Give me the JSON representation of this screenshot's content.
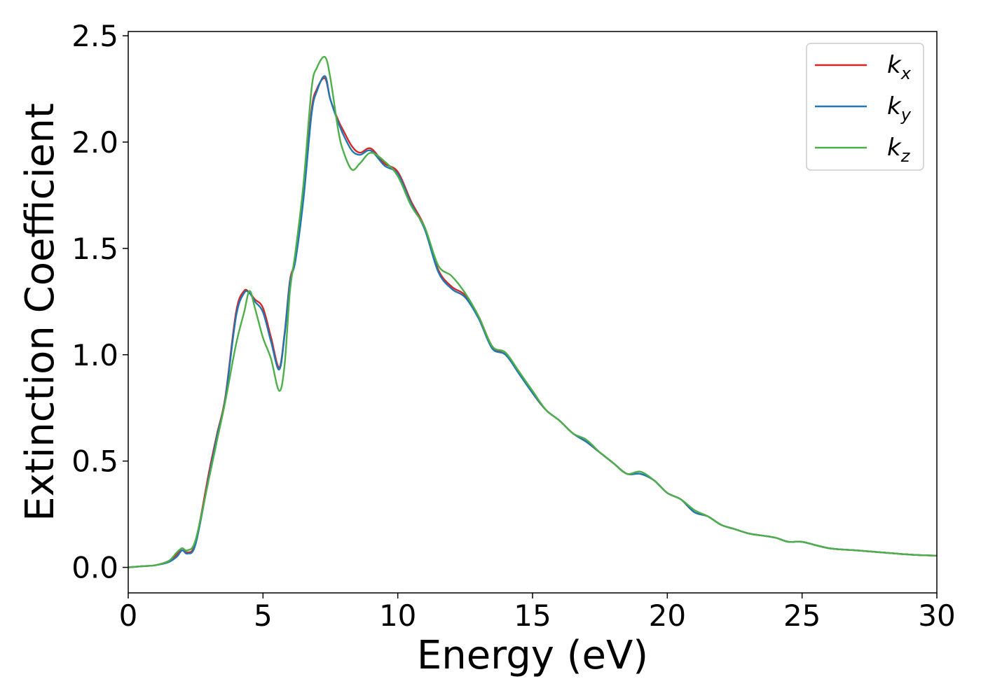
{
  "chart_data": {
    "type": "line",
    "xlabel": "Energy (eV)",
    "ylabel": "Extinction Coefficient",
    "xlim": [
      0,
      30
    ],
    "ylim": [
      -0.12,
      2.52
    ],
    "xticks": [
      "0",
      "5",
      "10",
      "15",
      "20",
      "25",
      "30"
    ],
    "yticks": [
      "0.0",
      "0.5",
      "1.0",
      "1.5",
      "2.0",
      "2.5"
    ],
    "grid": false,
    "legend_position": "top-right",
    "series": [
      {
        "name": "k",
        "subscript": "x",
        "color": "#d62728",
        "x": [
          0,
          0.5,
          1,
          1.5,
          1.8,
          2.0,
          2.2,
          2.5,
          3.0,
          3.3,
          3.6,
          4.0,
          4.3,
          4.5,
          4.7,
          5.0,
          5.3,
          5.6,
          5.8,
          6.0,
          6.2,
          6.5,
          6.8,
          7.0,
          7.3,
          7.5,
          7.8,
          8.0,
          8.3,
          8.6,
          9.0,
          9.5,
          10.0,
          10.5,
          11.0,
          11.5,
          12.0,
          12.5,
          13.0,
          13.5,
          14.0,
          14.5,
          15.0,
          15.5,
          16.0,
          16.5,
          17.0,
          17.5,
          18.0,
          18.5,
          19.0,
          19.5,
          20.0,
          20.5,
          21.0,
          21.5,
          22.0,
          22.5,
          23.0,
          23.5,
          24.0,
          24.5,
          25.0,
          26.0,
          27.0,
          28.0,
          29.0,
          30.0
        ],
        "values": [
          0.0,
          0.005,
          0.01,
          0.03,
          0.06,
          0.09,
          0.07,
          0.12,
          0.45,
          0.63,
          0.8,
          1.2,
          1.3,
          1.29,
          1.26,
          1.22,
          1.08,
          0.94,
          1.1,
          1.35,
          1.45,
          1.75,
          2.15,
          2.25,
          2.3,
          2.2,
          2.1,
          2.05,
          1.98,
          1.95,
          1.97,
          1.9,
          1.86,
          1.72,
          1.6,
          1.4,
          1.32,
          1.28,
          1.18,
          1.04,
          1.0,
          0.92,
          0.82,
          0.74,
          0.69,
          0.63,
          0.59,
          0.54,
          0.49,
          0.44,
          0.44,
          0.41,
          0.35,
          0.32,
          0.26,
          0.24,
          0.2,
          0.18,
          0.16,
          0.15,
          0.14,
          0.12,
          0.12,
          0.09,
          0.08,
          0.07,
          0.06,
          0.055
        ]
      },
      {
        "name": "k",
        "subscript": "y",
        "color": "#1f77b4",
        "x": [
          0,
          0.5,
          1,
          1.5,
          1.8,
          2.0,
          2.2,
          2.5,
          3.0,
          3.3,
          3.6,
          4.0,
          4.3,
          4.5,
          4.7,
          5.0,
          5.3,
          5.6,
          5.8,
          6.0,
          6.2,
          6.5,
          6.8,
          7.0,
          7.3,
          7.5,
          7.8,
          8.0,
          8.3,
          8.6,
          9.0,
          9.5,
          10.0,
          10.5,
          11.0,
          11.5,
          12.0,
          12.5,
          13.0,
          13.5,
          14.0,
          14.5,
          15.0,
          15.5,
          16.0,
          16.5,
          17.0,
          17.5,
          18.0,
          18.5,
          19.0,
          19.5,
          20.0,
          20.5,
          21.0,
          21.5,
          22.0,
          22.5,
          23.0,
          23.5,
          24.0,
          24.5,
          25.0,
          26.0,
          27.0,
          28.0,
          29.0,
          30.0
        ],
        "values": [
          0.0,
          0.005,
          0.01,
          0.025,
          0.05,
          0.08,
          0.065,
          0.11,
          0.43,
          0.62,
          0.79,
          1.18,
          1.29,
          1.29,
          1.25,
          1.2,
          1.06,
          0.93,
          1.09,
          1.34,
          1.44,
          1.73,
          2.13,
          2.24,
          2.31,
          2.2,
          2.09,
          2.03,
          1.96,
          1.94,
          1.96,
          1.89,
          1.85,
          1.71,
          1.59,
          1.39,
          1.31,
          1.27,
          1.17,
          1.03,
          1.0,
          0.91,
          0.82,
          0.74,
          0.69,
          0.63,
          0.59,
          0.54,
          0.49,
          0.44,
          0.44,
          0.41,
          0.35,
          0.32,
          0.26,
          0.24,
          0.2,
          0.18,
          0.16,
          0.15,
          0.14,
          0.12,
          0.12,
          0.09,
          0.08,
          0.07,
          0.06,
          0.055
        ]
      },
      {
        "name": "k",
        "subscript": "z",
        "color": "#4daf4a",
        "x": [
          0,
          0.5,
          1,
          1.5,
          1.8,
          2.0,
          2.2,
          2.5,
          3.0,
          3.3,
          3.6,
          4.0,
          4.3,
          4.5,
          4.7,
          5.0,
          5.3,
          5.6,
          5.8,
          6.0,
          6.2,
          6.5,
          6.8,
          7.0,
          7.3,
          7.5,
          7.8,
          8.0,
          8.3,
          8.6,
          9.0,
          9.5,
          10.0,
          10.5,
          11.0,
          11.5,
          12.0,
          12.5,
          13.0,
          13.5,
          14.0,
          14.5,
          15.0,
          15.5,
          16.0,
          16.5,
          17.0,
          17.5,
          18.0,
          18.5,
          19.0,
          19.5,
          20.0,
          20.5,
          21.0,
          21.5,
          22.0,
          22.5,
          23.0,
          23.5,
          24.0,
          24.5,
          25.0,
          26.0,
          27.0,
          28.0,
          29.0,
          30.0
        ],
        "values": [
          0.0,
          0.005,
          0.01,
          0.03,
          0.07,
          0.09,
          0.08,
          0.13,
          0.42,
          0.6,
          0.78,
          1.05,
          1.2,
          1.3,
          1.22,
          1.08,
          0.98,
          0.83,
          0.95,
          1.3,
          1.48,
          1.8,
          2.25,
          2.35,
          2.4,
          2.3,
          2.05,
          1.95,
          1.87,
          1.9,
          1.95,
          1.91,
          1.84,
          1.7,
          1.6,
          1.42,
          1.37,
          1.29,
          1.18,
          1.04,
          1.01,
          0.92,
          0.83,
          0.74,
          0.69,
          0.63,
          0.6,
          0.54,
          0.49,
          0.44,
          0.45,
          0.41,
          0.35,
          0.32,
          0.27,
          0.24,
          0.2,
          0.18,
          0.16,
          0.15,
          0.14,
          0.12,
          0.12,
          0.09,
          0.08,
          0.07,
          0.06,
          0.055
        ]
      }
    ]
  }
}
